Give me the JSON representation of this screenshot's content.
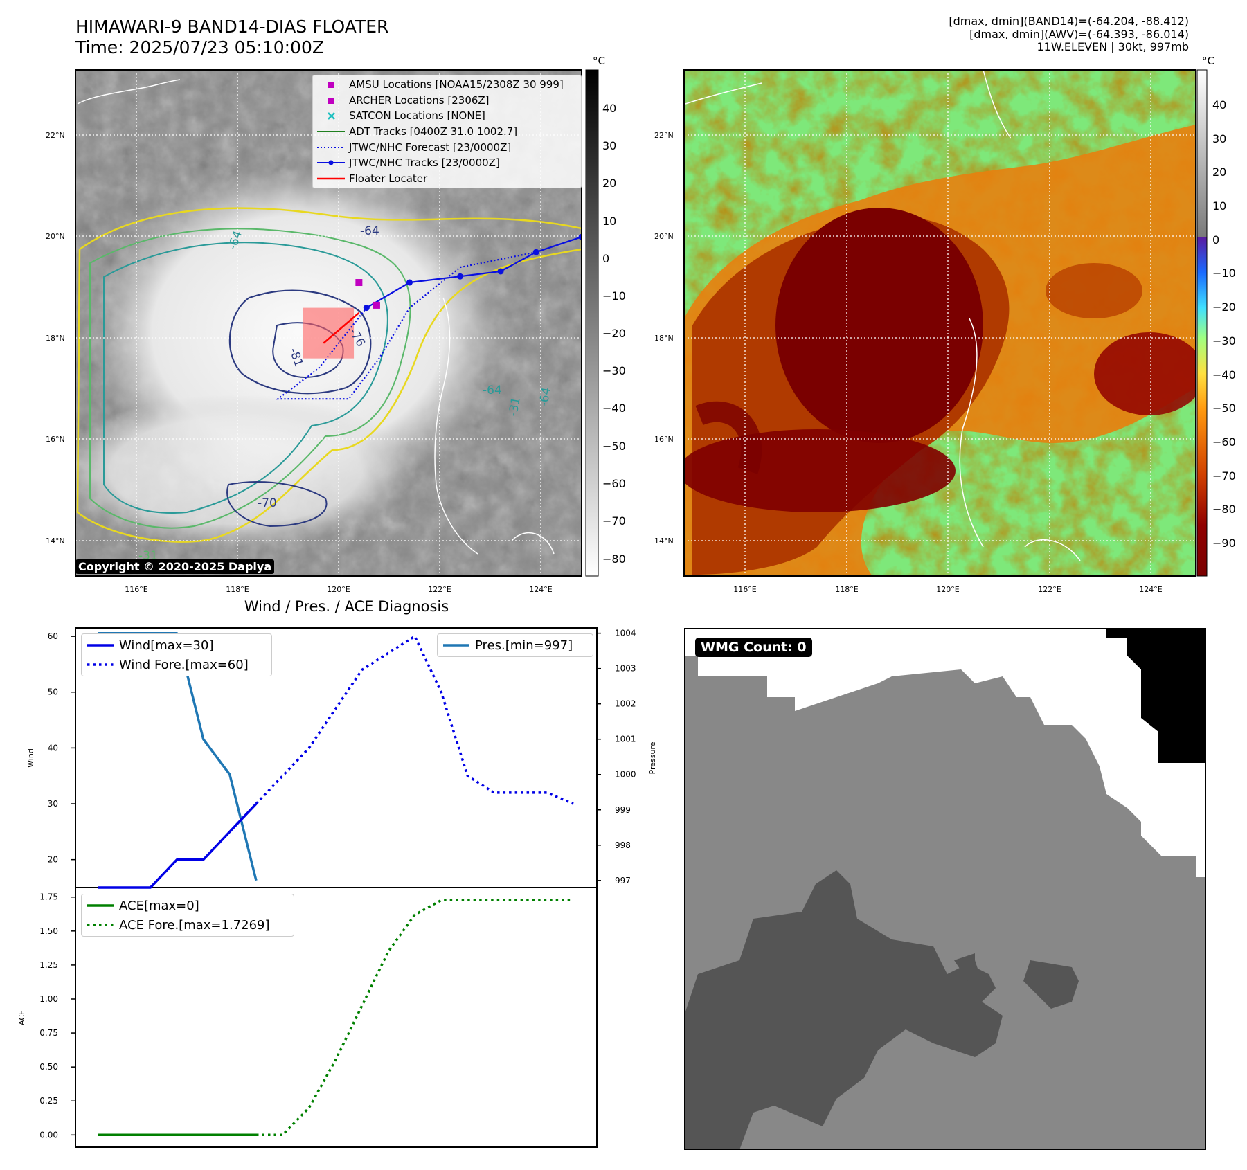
{
  "header": {
    "title_line1": "HIMAWARI-9 BAND14-DIAS FLOATER",
    "title_line2": "Time: 2025/07/23 05:10:00Z",
    "info_line1": "[dmax, dmin](BAND14)=(-64.204, -88.412)",
    "info_line2": "[dmax, dmin](AWV)=(-64.393, -86.014)",
    "info_line3": "11W.ELEVEN | 30kt, 997mb"
  },
  "ir_map": {
    "copyright": "Copyright © 2020-2025 Dapiya",
    "colorbar_unit": "°C",
    "colorbar_ticks": [
      "40",
      "30",
      "20",
      "10",
      "0",
      "−10",
      "−20",
      "−30",
      "−40",
      "−50",
      "−60",
      "−70",
      "−80"
    ],
    "lat_labels": [
      "22°N",
      "20°N",
      "18°N",
      "16°N",
      "14°N"
    ],
    "lon_labels": [
      "116°E",
      "118°E",
      "120°E",
      "122°E",
      "124°E"
    ],
    "contour_labels": [
      "-64",
      "-76",
      "-81",
      "-70",
      "-64",
      "-64",
      "-31",
      "-64",
      "-31"
    ],
    "legend": [
      {
        "label": "AMSU Locations [NOAA15/2308Z 30 999]",
        "symbol": "magenta-square"
      },
      {
        "label": "ARCHER Locations [2306Z]",
        "symbol": "magenta-square"
      },
      {
        "label": "SATCON Locations [NONE]",
        "symbol": "cyan-x"
      },
      {
        "label": "ADT Tracks [0400Z 31.0 1002.7]",
        "symbol": "green-line"
      },
      {
        "label": "JTWC/NHC Forecast [23/0000Z]",
        "symbol": "blue-dotted-line"
      },
      {
        "label": "JTWC/NHC Tracks [23/0000Z]",
        "symbol": "blue-line-dot"
      },
      {
        "label": "Floater Locater",
        "symbol": "red-line"
      }
    ],
    "colors": {
      "amsu": "#c000c0",
      "satcon": "#20c0c0",
      "adt": "#208020",
      "jtwc": "#0a10e0",
      "floater": "#ff0000"
    },
    "map_extent": {
      "lon": [
        114.8,
        124.8
      ],
      "lat": [
        13.5,
        23.5
      ]
    },
    "jtwc_track": [
      [
        120.55,
        18.8
      ],
      [
        121.4,
        19.3
      ],
      [
        122.4,
        19.42
      ],
      [
        123.2,
        19.52
      ],
      [
        123.9,
        19.9
      ],
      [
        124.8,
        20.2
      ]
    ],
    "jtwc_forecast": [
      [
        123.9,
        19.9
      ],
      [
        122.4,
        19.6
      ],
      [
        121.4,
        18.8
      ],
      [
        120.8,
        17.8
      ],
      [
        120.2,
        17.0
      ],
      [
        118.8,
        17.0
      ],
      [
        119.6,
        17.6
      ],
      [
        120.0,
        18.1
      ],
      [
        120.55,
        18.8
      ]
    ],
    "floater_track": [
      [
        119.7,
        18.1
      ],
      [
        120.4,
        18.7
      ]
    ],
    "floater_box": {
      "lon": [
        119.3,
        120.3
      ],
      "lat": [
        17.8,
        18.8
      ]
    },
    "amsu_point": [
      120.4,
      19.3
    ],
    "archer_point": [
      120.75,
      18.85
    ]
  },
  "awv_map": {
    "colorbar_unit": "°C",
    "colorbar_ticks": [
      "40",
      "30",
      "20",
      "10",
      "0",
      "−10",
      "−20",
      "−30",
      "−40",
      "−50",
      "−60",
      "−70",
      "−80",
      "−90"
    ],
    "lat_labels": [
      "22°N",
      "20°N",
      "18°N",
      "16°N",
      "14°N"
    ],
    "lon_labels": [
      "116°E",
      "118°E",
      "120°E",
      "122°E",
      "124°E"
    ]
  },
  "diagnosis": {
    "title": "Wind / Pres. / ACE Diagnosis",
    "wind_ylabel": "Wind",
    "pres_ylabel": "Pressure",
    "ace_ylabel": "ACE",
    "wind_legend": [
      "Wind[max=30]",
      "Wind Fore.[max=60]"
    ],
    "pres_legend": [
      "Pres.[min=997]"
    ],
    "ace_legend": [
      "ACE[max=0]",
      "ACE Fore.[max=1.7269]"
    ],
    "wind_ticks": [
      "60",
      "50",
      "40",
      "30",
      "20"
    ],
    "pres_ticks": [
      "1004",
      "1003",
      "1002",
      "1001",
      "1000",
      "999",
      "998",
      "997"
    ],
    "ace_ticks": [
      "1.75",
      "1.50",
      "1.25",
      "1.00",
      "0.75",
      "0.50",
      "0.25",
      "0.00"
    ],
    "colors": {
      "wind": "#0000e6",
      "pres": "#1f77b4",
      "ace": "#008000"
    }
  },
  "chart_data": {
    "type": "line",
    "title": "Wind / Pres. / ACE Diagnosis",
    "panels": [
      {
        "ylabel": "Wind",
        "ylim": [
          15,
          61.5
        ],
        "series": [
          {
            "name": "Wind[max=30]",
            "x": [
              0,
              1,
              2,
              3,
              4,
              5,
              6
            ],
            "values": [
              15,
              15,
              15,
              20,
              20,
              25,
              30
            ]
          },
          {
            "name": "Wind Fore.[max=60]",
            "x": [
              6,
              7,
              8,
              9,
              10,
              11,
              12,
              13,
              14,
              15,
              16,
              17,
              18
            ],
            "values": [
              30,
              35,
              40,
              47,
              54,
              57,
              60,
              50,
              35,
              32,
              32,
              32,
              30
            ]
          }
        ],
        "secondary": {
          "ylabel": "Pressure",
          "ylim": [
            996.8,
            1004.15
          ],
          "series": [
            {
              "name": "Pres.[min=997]",
              "x": [
                0,
                1,
                2,
                3,
                4,
                5,
                6
              ],
              "values": [
                1004,
                1004,
                1004,
                1004,
                1001,
                1000,
                997
              ]
            }
          ]
        }
      },
      {
        "ylabel": "ACE",
        "ylim": [
          -0.09,
          1.82
        ],
        "series": [
          {
            "name": "ACE[max=0]",
            "x": [
              0,
              1,
              2,
              3,
              4,
              5,
              6
            ],
            "values": [
              0,
              0,
              0,
              0,
              0,
              0,
              0
            ]
          },
          {
            "name": "ACE Fore.[max=1.7269]",
            "x": [
              6,
              7,
              8,
              9,
              10,
              11,
              12,
              13,
              14,
              15,
              16,
              17,
              18
            ],
            "values": [
              0,
              0,
              0.2,
              0.55,
              0.95,
              1.35,
              1.62,
              1.727,
              1.727,
              1.727,
              1.727,
              1.727,
              1.727
            ]
          }
        ]
      }
    ]
  },
  "wmg": {
    "badge": "WMG Count: 0"
  }
}
